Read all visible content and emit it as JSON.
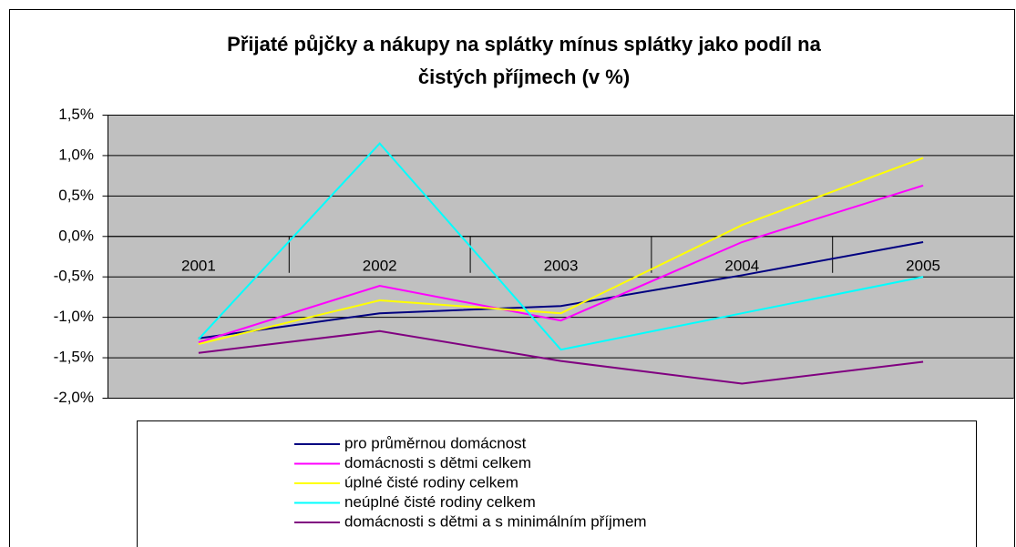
{
  "chart_data": {
    "type": "line",
    "title": [
      "Přijaté půjčky a nákupy na splátky mínus splátky jako podíl na",
      "čistých příjmech (v %)"
    ],
    "categories": [
      "2001",
      "2002",
      "2003",
      "2004",
      "2005"
    ],
    "series": [
      {
        "name": "pro průměrnou domácnost",
        "color": "#000080",
        "values": [
          -1.26,
          -0.95,
          -0.86,
          -0.48,
          -0.07
        ]
      },
      {
        "name": "domácnosti s dětmi celkem",
        "color": "#ff00ff",
        "values": [
          -1.31,
          -0.61,
          -1.04,
          -0.07,
          0.63
        ]
      },
      {
        "name": "úplné čisté rodiny celkem",
        "color": "#ffff00",
        "values": [
          -1.33,
          -0.79,
          -0.95,
          0.14,
          0.97
        ]
      },
      {
        "name": "neúplné čisté rodiny celkem",
        "color": "#00ffff",
        "values": [
          -1.27,
          1.15,
          -1.4,
          -0.95,
          -0.5
        ]
      },
      {
        "name": "domácnosti s dětmi a s minimálním příjmem",
        "color": "#800080",
        "values": [
          -1.44,
          -1.17,
          -1.54,
          -1.82,
          -1.55
        ]
      }
    ],
    "ylim": [
      -2.0,
      1.5
    ],
    "yticks": [
      {
        "value": -2.0,
        "label": "-2,0%"
      },
      {
        "value": -1.5,
        "label": "-1,5%"
      },
      {
        "value": -1.0,
        "label": "-1,0%"
      },
      {
        "value": -0.5,
        "label": "-0,5%"
      },
      {
        "value": 0,
        "label": "0,0%"
      },
      {
        "value": 0.5,
        "label": "0,5%"
      },
      {
        "value": 1.0,
        "label": "1,0%"
      },
      {
        "value": 1.5,
        "label": "1,5%"
      }
    ],
    "grid": true
  }
}
